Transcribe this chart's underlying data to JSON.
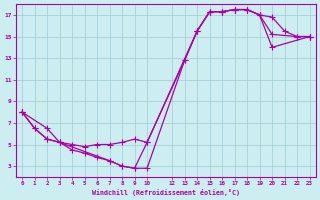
{
  "xlabel": "Windchill (Refroidissement éolien,°C)",
  "bg_color": "#cceef0",
  "grid_color": "#a0ccd4",
  "line_color": "#aa00aa",
  "xlim": [
    -0.5,
    23.5
  ],
  "ylim": [
    2.0,
    18.0
  ],
  "xticks": [
    0,
    1,
    2,
    3,
    4,
    5,
    6,
    7,
    8,
    9,
    10,
    12,
    13,
    14,
    15,
    16,
    17,
    18,
    19,
    20,
    21,
    22,
    23
  ],
  "yticks": [
    3,
    5,
    7,
    9,
    11,
    13,
    15,
    17
  ],
  "series1_x": [
    0,
    1,
    2,
    3,
    4,
    5,
    6,
    7,
    8,
    9,
    10,
    14,
    15,
    16,
    17,
    18,
    19,
    20,
    22,
    23
  ],
  "series1_y": [
    8.0,
    6.5,
    5.5,
    5.2,
    5.0,
    4.8,
    5.0,
    5.0,
    5.2,
    5.5,
    5.2,
    15.5,
    17.3,
    17.3,
    17.5,
    17.5,
    17.0,
    15.2,
    15.0,
    15.0
  ],
  "series2_x": [
    0,
    1,
    2,
    3,
    4,
    5,
    6,
    7,
    8,
    9,
    10,
    13,
    14,
    15,
    16,
    17,
    18,
    19,
    20,
    21,
    22,
    23
  ],
  "series2_y": [
    8.0,
    6.5,
    5.5,
    5.2,
    4.5,
    4.2,
    3.8,
    3.5,
    3.0,
    2.8,
    2.8,
    12.8,
    15.5,
    17.3,
    17.3,
    17.5,
    17.5,
    17.0,
    16.8,
    15.5,
    15.0,
    15.0
  ],
  "series3_x": [
    0,
    2,
    3,
    7,
    8,
    9,
    10,
    13,
    14,
    15,
    16,
    17,
    18,
    19,
    20,
    23
  ],
  "series3_y": [
    8.0,
    6.5,
    5.2,
    3.5,
    3.0,
    2.8,
    5.2,
    12.8,
    15.5,
    17.3,
    17.3,
    17.5,
    17.5,
    17.0,
    14.0,
    15.0
  ]
}
